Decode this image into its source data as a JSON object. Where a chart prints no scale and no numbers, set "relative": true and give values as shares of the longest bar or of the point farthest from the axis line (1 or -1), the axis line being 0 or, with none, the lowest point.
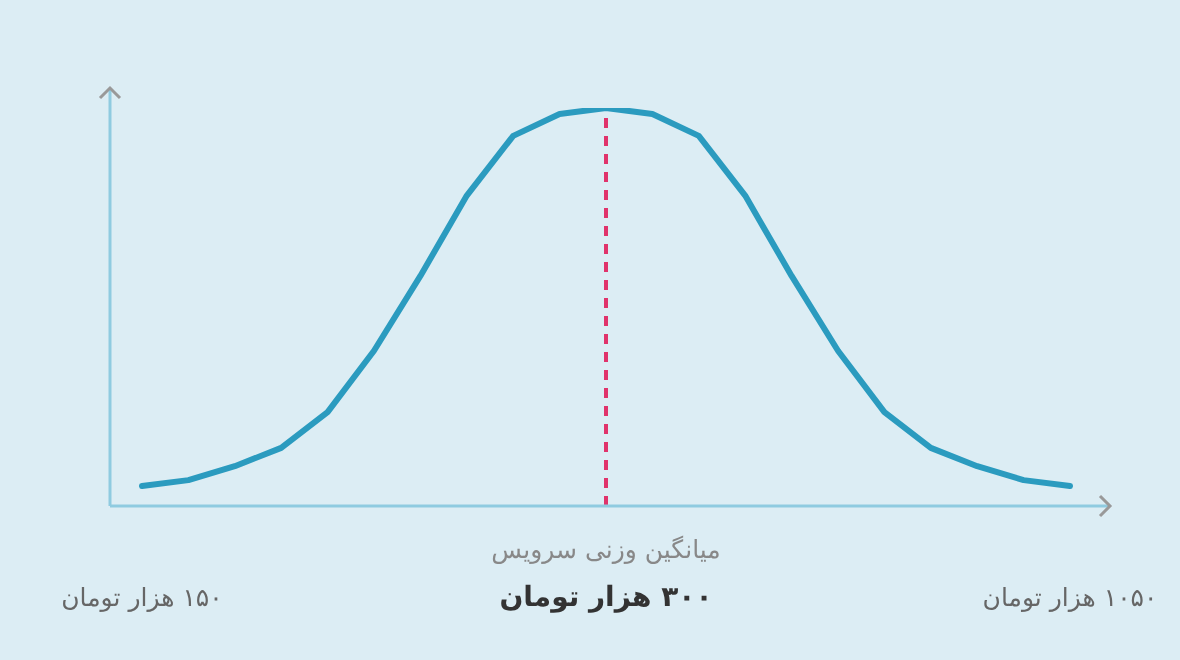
{
  "chart_data": {
    "type": "line",
    "relative": true,
    "categories": [
      "۱۵۰ هزار تومان",
      null,
      null,
      null,
      null,
      null,
      null,
      null,
      null,
      null,
      "۳۰۰ هزار تومان",
      null,
      null,
      null,
      null,
      null,
      null,
      null,
      null,
      null,
      "۱۰۵۰ هزار تومان"
    ],
    "series": [
      {
        "color": "#2b9bbf",
        "values": [
          0.05,
          0.065,
          0.1,
          0.146,
          0.236,
          0.39,
          0.578,
          0.78,
          0.93,
          0.985,
          1,
          0.985,
          0.93,
          0.78,
          0.578,
          0.39,
          0.236,
          0.146,
          0.1,
          0.065,
          0.05
        ]
      }
    ],
    "ref_lines": [
      {
        "axis": "x",
        "value": "۳۰۰ هزار تومان",
        "label": "میانگین وزنی سرویس",
        "color": "#e0336b",
        "line_style": "dashed"
      }
    ],
    "marker": "none",
    "line_style": "solid",
    "grid": false,
    "legend": false
  }
}
